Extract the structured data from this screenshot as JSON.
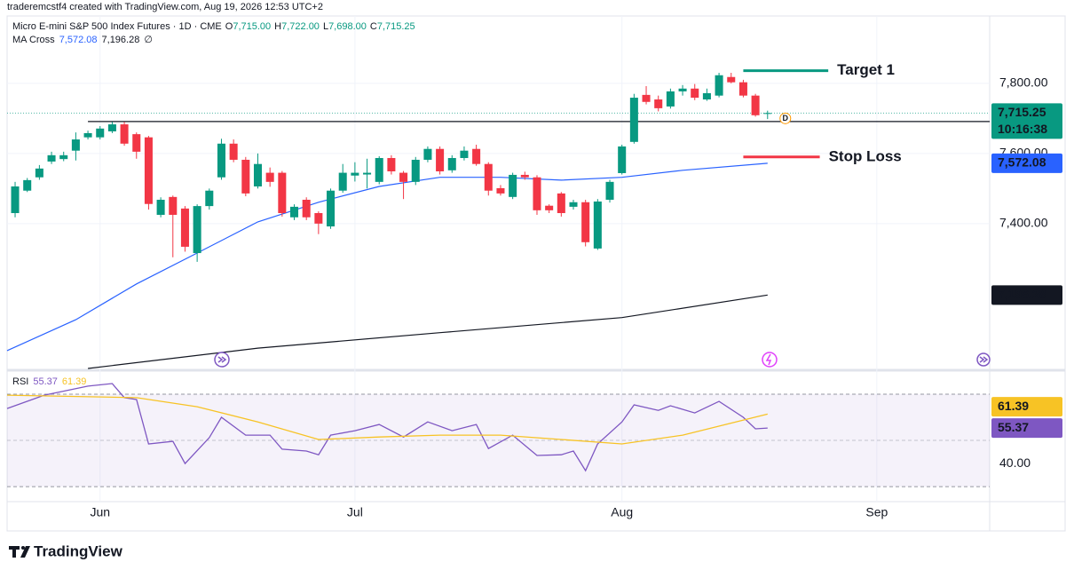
{
  "caption": "traderemcstf4 created with TradingView.com, Aug 19, 2026 12:53 UTC+2",
  "brand": "TradingView",
  "chart_data": {
    "type": "candlestick",
    "title": "Micro E-mini S&P 500 Index Futures · 1D · CME",
    "ohlc_legend": [
      {
        "key": "O",
        "value": "7,715.00"
      },
      {
        "key": "H",
        "value": "7,722.00"
      },
      {
        "key": "L",
        "value": "7,698.00"
      },
      {
        "key": "C",
        "value": "7,715.25"
      }
    ],
    "up_color": "#089981",
    "down_color": "#f23645",
    "open": [
      7430,
      7494,
      7532,
      7577,
      7584,
      7608,
      7646,
      7646,
      7663,
      7683,
      7655,
      7646,
      7425,
      7476,
      7443,
      7316,
      7450,
      7532,
      7628,
      7582,
      7506,
      7545,
      7545,
      7418,
      7468,
      7430,
      7392,
      7494,
      7537,
      7540,
      7519,
      7587,
      7545,
      7519,
      7582,
      7613,
      7552,
      7587,
      7613,
      7570,
      7501,
      7476,
      7539,
      7532,
      7451,
      7486,
      7448,
      7461,
      7329,
      7468,
      7544,
      7633,
      7767,
      7754,
      7734,
      7777,
      7785,
      7754,
      7765,
      7818,
      7803,
      7765,
      7715
    ],
    "high": [
      7519,
      7530,
      7567,
      7605,
      7605,
      7660,
      7665,
      7678,
      7690,
      7690,
      7660,
      7650,
      7475,
      7480,
      7450,
      7455,
      7500,
      7642,
      7640,
      7590,
      7600,
      7560,
      7550,
      7455,
      7475,
      7435,
      7500,
      7570,
      7575,
      7585,
      7592,
      7595,
      7550,
      7590,
      7620,
      7620,
      7595,
      7620,
      7625,
      7575,
      7510,
      7545,
      7548,
      7538,
      7455,
      7490,
      7468,
      7468,
      7470,
      7525,
      7625,
      7770,
      7792,
      7765,
      7785,
      7795,
      7798,
      7785,
      7830,
      7830,
      7810,
      7770,
      7722
    ],
    "low": [
      7418,
      7490,
      7525,
      7570,
      7578,
      7580,
      7640,
      7640,
      7658,
      7622,
      7585,
      7440,
      7418,
      7304,
      7320,
      7291,
      7440,
      7525,
      7575,
      7478,
      7500,
      7505,
      7420,
      7410,
      7410,
      7370,
      7385,
      7488,
      7520,
      7500,
      7512,
      7540,
      7470,
      7510,
      7575,
      7540,
      7545,
      7580,
      7565,
      7480,
      7480,
      7470,
      7525,
      7425,
      7430,
      7420,
      7440,
      7335,
      7325,
      7460,
      7540,
      7628,
      7740,
      7720,
      7728,
      7765,
      7752,
      7750,
      7760,
      7800,
      7760,
      7705,
      7698
    ],
    "close": [
      7506,
      7524,
      7557,
      7595,
      7595,
      7640,
      7658,
      7671,
      7683,
      7628,
      7605,
      7456,
      7468,
      7425,
      7334,
      7450,
      7494,
      7628,
      7582,
      7486,
      7570,
      7519,
      7430,
      7448,
      7418,
      7400,
      7494,
      7545,
      7545,
      7545,
      7587,
      7549,
      7519,
      7582,
      7613,
      7549,
      7587,
      7608,
      7570,
      7494,
      7486,
      7539,
      7532,
      7438,
      7438,
      7430,
      7461,
      7347,
      7463,
      7519,
      7620,
      7759,
      7747,
      7729,
      7777,
      7785,
      7759,
      7772,
      7823,
      7803,
      7765,
      7709,
      7715.25
    ],
    "xlim": [
      -0.66,
      80.3
    ],
    "xticks": [
      {
        "value": 7,
        "label": "Jun"
      },
      {
        "value": 28,
        "label": "Jul"
      },
      {
        "value": 50,
        "label": "Aug"
      },
      {
        "value": 71,
        "label": "Sep"
      }
    ],
    "ylim": [
      6987,
      7992
    ],
    "yticks": [
      {
        "value": 7400,
        "label": "7,400.00"
      },
      {
        "value": 7600,
        "label": "7,600.00"
      },
      {
        "value": 7800,
        "label": "7,800.00"
      }
    ],
    "last_price": {
      "value": 7715.25,
      "label": "7,715.25"
    },
    "countdown": "10:16:38",
    "event_marker": "D",
    "horizontal_line": {
      "value": 7691,
      "start": 6,
      "color": "#131722"
    },
    "levels": [
      {
        "name": "Target 1",
        "value": 7836,
        "start": 60,
        "end": 67,
        "color": "#089981"
      },
      {
        "name": "Stop Loss",
        "value": 7590,
        "start": 60,
        "end": 66.3,
        "color": "#f23645"
      }
    ],
    "ma_cross": {
      "name": "MA Cross",
      "symbol": "∅",
      "lines": [
        {
          "color": "#2962ff",
          "label": "7,572.08",
          "x": [
            -0.66,
            5,
            10,
            15,
            20,
            25,
            30,
            35,
            40,
            45,
            50,
            55,
            62
          ],
          "values": [
            7038,
            7126,
            7228,
            7316,
            7405,
            7461,
            7506,
            7532,
            7532,
            7524,
            7532,
            7552,
            7572.08
          ]
        },
        {
          "color": "#131722",
          "label": "7,196.28",
          "x": [
            6,
            20,
            35,
            50,
            62
          ],
          "values": [
            6987,
            7045,
            7089,
            7132,
            7196.28
          ]
        }
      ]
    },
    "rsi": {
      "name": "RSI",
      "ylim": [
        23.5,
        80
      ],
      "yticks": [
        {
          "value": 40,
          "label": "40.00"
        }
      ],
      "band": [
        30,
        70
      ],
      "midline": 50,
      "band_color": "#7e57c2",
      "lines": [
        {
          "color": "#7e57c2",
          "label": "55.37",
          "x": [
            -0.66,
            2.4,
            6,
            8,
            9,
            10,
            11,
            13,
            14,
            16,
            17,
            19,
            21,
            22,
            24,
            25,
            26,
            28,
            30,
            32,
            34,
            36,
            38,
            39,
            41,
            43,
            45,
            46,
            47,
            48,
            50,
            51,
            53,
            54,
            56,
            58,
            60,
            61,
            62
          ],
          "values": [
            63.8,
            69.6,
            73.5,
            74.6,
            68.5,
            67.7,
            48.5,
            49.6,
            40,
            51.2,
            60,
            52.3,
            52.3,
            46.2,
            45.4,
            43.8,
            52.3,
            54.2,
            56.9,
            51.5,
            58,
            54.2,
            56.9,
            46.5,
            52.3,
            43.5,
            43.8,
            45.4,
            36.9,
            48.5,
            58,
            65.4,
            63,
            65,
            61.9,
            66.9,
            60,
            55,
            55.37
          ]
        },
        {
          "color": "#f7c325",
          "label": "61.39",
          "x": [
            -0.66,
            10,
            15,
            20,
            25,
            30,
            35,
            40,
            45,
            50,
            55,
            62
          ],
          "values": [
            69.6,
            68.5,
            64.6,
            58,
            50.4,
            51.5,
            52.3,
            52.3,
            50.4,
            48.5,
            52.3,
            61.39
          ]
        }
      ]
    }
  }
}
